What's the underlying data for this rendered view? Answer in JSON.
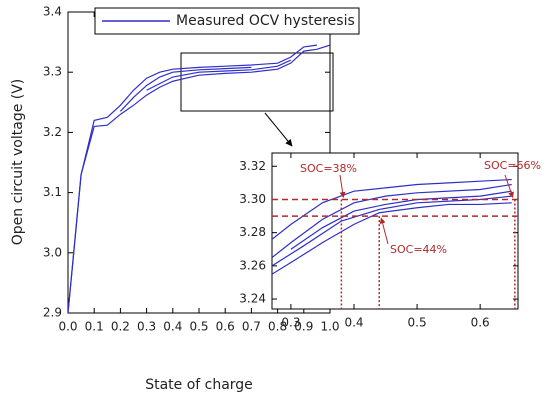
{
  "chart_data": [
    {
      "type": "line",
      "xlabel": "State of charge",
      "ylabel": "Open circuit voltage (V)",
      "xlim": [
        0,
        1.0
      ],
      "ylim": [
        2.9,
        3.4
      ],
      "xticks": [
        {
          "value": 0,
          "label": "0.0"
        },
        0.1,
        0.2,
        0.3,
        0.4,
        0.5,
        0.6,
        0.7,
        0.8,
        0.9,
        {
          "value": 1.0,
          "label": "1.0"
        }
      ],
      "yticks": [
        2.9,
        {
          "value": 3.0,
          "label": "3.0"
        },
        3.1,
        3.2,
        3.3,
        3.4
      ],
      "legend": "top",
      "series": [
        {
          "name": "Measured OCV hysteresis",
          "color": "#2f2fc8",
          "x": [
            0,
            0.05,
            0.1,
            0.15,
            0.2,
            0.25,
            0.3,
            0.35,
            0.4,
            0.5,
            0.6,
            0.7,
            0.8,
            0.85,
            0.9,
            0.95
          ],
          "values": [
            2.9,
            3.13,
            3.22,
            3.225,
            3.245,
            3.27,
            3.29,
            3.3,
            3.305,
            3.308,
            3.31,
            3.312,
            3.315,
            3.325,
            3.342,
            3.345
          ]
        },
        {
          "color": "#2f2fc8",
          "x": [
            0,
            0.05,
            0.1,
            0.15,
            0.2,
            0.25,
            0.3,
            0.35,
            0.4,
            0.45,
            0.5,
            0.6,
            0.7,
            0.8,
            0.85,
            0.9,
            0.95,
            1.0
          ],
          "values": [
            2.9,
            3.13,
            3.21,
            3.212,
            3.23,
            3.245,
            3.262,
            3.275,
            3.285,
            3.29,
            3.295,
            3.298,
            3.3,
            3.305,
            3.315,
            3.335,
            3.338,
            3.345
          ]
        },
        {
          "color": "#2f2fc8",
          "x": [
            0.2,
            0.25,
            0.3,
            0.35,
            0.4,
            0.5,
            0.6,
            0.7
          ],
          "values": [
            3.235,
            3.258,
            3.278,
            3.292,
            3.3,
            3.304,
            3.306,
            3.308
          ]
        },
        {
          "color": "#2f2fc8",
          "x": [
            0.3,
            0.4,
            0.5,
            0.6,
            0.7,
            0.8,
            0.85
          ],
          "values": [
            3.27,
            3.292,
            3.3,
            3.302,
            3.304,
            3.31,
            3.32
          ]
        }
      ]
    },
    {
      "type": "line",
      "xlim": [
        0.27,
        0.66
      ],
      "ylim": [
        3.234,
        3.328
      ],
      "xticks": [
        0.3,
        0.4,
        0.5,
        0.6
      ],
      "yticks": [
        3.24,
        3.26,
        3.28,
        {
          "value": 3.3,
          "label": "3.30"
        },
        3.32
      ],
      "hlines": [
        3.3,
        3.29
      ],
      "vlines": [
        0.38,
        0.44,
        0.655
      ],
      "annotations": [
        "SOC=38%",
        "SOC=44%",
        "SOC=66%"
      ],
      "annotation_color": "#b02a2a",
      "series": [
        {
          "color": "#2f2fc8",
          "x": [
            0.27,
            0.3,
            0.35,
            0.4,
            0.45,
            0.5,
            0.55,
            0.6,
            0.65
          ],
          "values": [
            3.276,
            3.285,
            3.298,
            3.305,
            3.307,
            3.309,
            3.31,
            3.311,
            3.312
          ]
        },
        {
          "color": "#2f2fc8",
          "x": [
            0.27,
            0.3,
            0.35,
            0.4,
            0.44,
            0.5,
            0.55,
            0.6,
            0.65
          ],
          "values": [
            3.255,
            3.262,
            3.274,
            3.285,
            3.292,
            3.295,
            3.297,
            3.297,
            3.298
          ]
        },
        {
          "color": "#2f2fc8",
          "x": [
            0.27,
            0.3,
            0.35,
            0.4,
            0.45,
            0.5,
            0.6,
            0.65
          ],
          "values": [
            3.265,
            3.274,
            3.288,
            3.298,
            3.302,
            3.304,
            3.306,
            3.309
          ]
        },
        {
          "color": "#2f2fc8",
          "x": [
            0.3,
            0.35,
            0.4,
            0.45,
            0.5,
            0.6,
            0.65
          ],
          "values": [
            3.27,
            3.283,
            3.293,
            3.297,
            3.3,
            3.302,
            3.305
          ]
        },
        {
          "color": "#2f2fc8",
          "x": [
            0.27,
            0.32,
            0.38,
            0.44,
            0.5,
            0.6,
            0.65
          ],
          "values": [
            3.26,
            3.272,
            3.287,
            3.294,
            3.298,
            3.3,
            3.302
          ]
        }
      ]
    }
  ]
}
